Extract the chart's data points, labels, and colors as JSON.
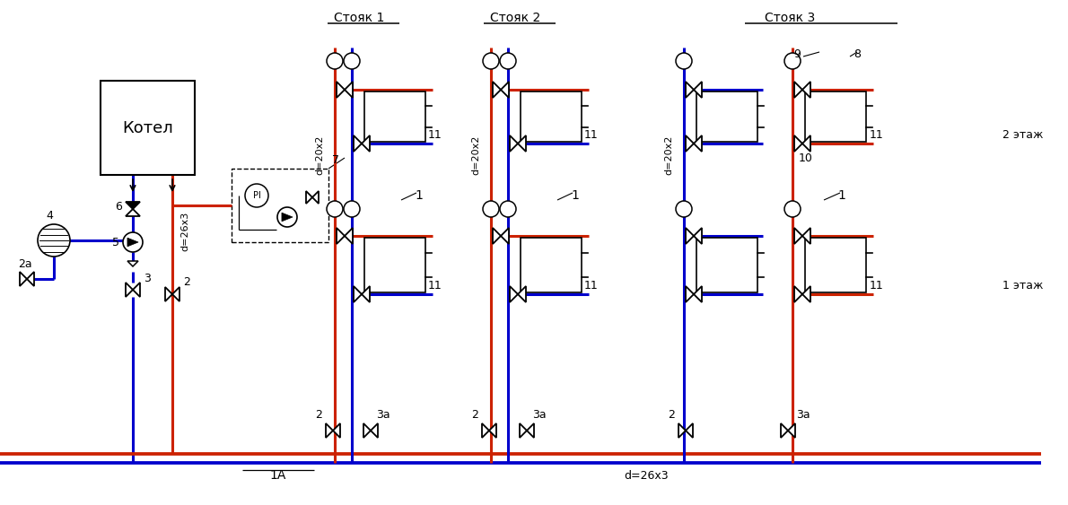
{
  "bg_color": "#ffffff",
  "red": "#cc2200",
  "blue": "#0000cc",
  "black": "#000000",
  "lw_main": 2.2,
  "lw_thin": 1.2,
  "lw_pipe": 1.8,
  "boiler_label": "Котел",
  "stoyak_labels": [
    "Стояк 1",
    "Стояк 2",
    "Стояк 3"
  ],
  "label_1A": "1А",
  "label_d26x3_bot": "d=26x3",
  "label_d26x3_vert": "d=26x3",
  "label_d20x2": "d=20x2",
  "label_1": "1",
  "label_2etazh": "2 этаж",
  "label_1etazh": "1 этаж",
  "nums": {
    "2a": "2а",
    "3": "3",
    "4": "4",
    "5": "5",
    "6": "6",
    "7": "7",
    "8": "8",
    "9": "9",
    "10": "10",
    "11": "11",
    "2": "2",
    "3a": "3а",
    "1A_label": "1А"
  }
}
